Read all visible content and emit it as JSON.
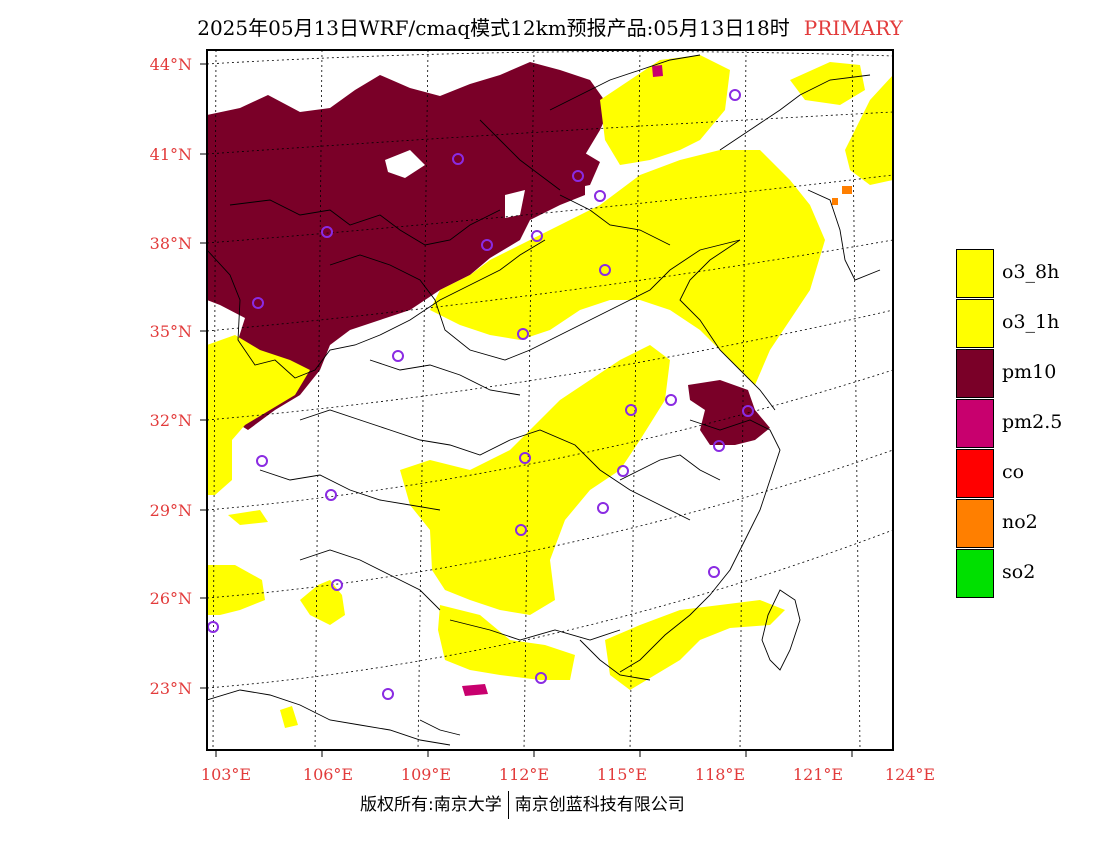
{
  "title": {
    "main": "2025年05月13日WRF/cmaq模式12km预报产品:05月13日18时",
    "tag": "PRIMARY"
  },
  "colors": {
    "o3_8h": "#ffff00",
    "o3_1h": "#ffff00",
    "pm10": "#7a0028",
    "pm2.5": "#c8006e",
    "co": "#ff0000",
    "no2": "#ff7f00",
    "so2": "#00e000",
    "station": "#8a2be2",
    "axis_label": "#e23b3b"
  },
  "lat_labels": [
    "44°N",
    "41°N",
    "38°N",
    "35°N",
    "32°N",
    "29°N",
    "26°N",
    "23°N"
  ],
  "lon_labels": [
    "103°E",
    "106°E",
    "109°E",
    "112°E",
    "115°E",
    "118°E",
    "121°E",
    "124°E"
  ],
  "legend": [
    {
      "key": "o3_8h",
      "label": "o3_8h"
    },
    {
      "key": "o3_1h",
      "label": "o3_1h"
    },
    {
      "key": "pm10",
      "label": "pm10"
    },
    {
      "key": "pm2.5",
      "label": "pm2.5"
    },
    {
      "key": "co",
      "label": "co"
    },
    {
      "key": "no2",
      "label": "no2"
    },
    {
      "key": "so2",
      "label": "so2"
    }
  ],
  "footer": {
    "left": "版权所有:南京大学",
    "right": "南京创蓝科技有限公司"
  }
}
